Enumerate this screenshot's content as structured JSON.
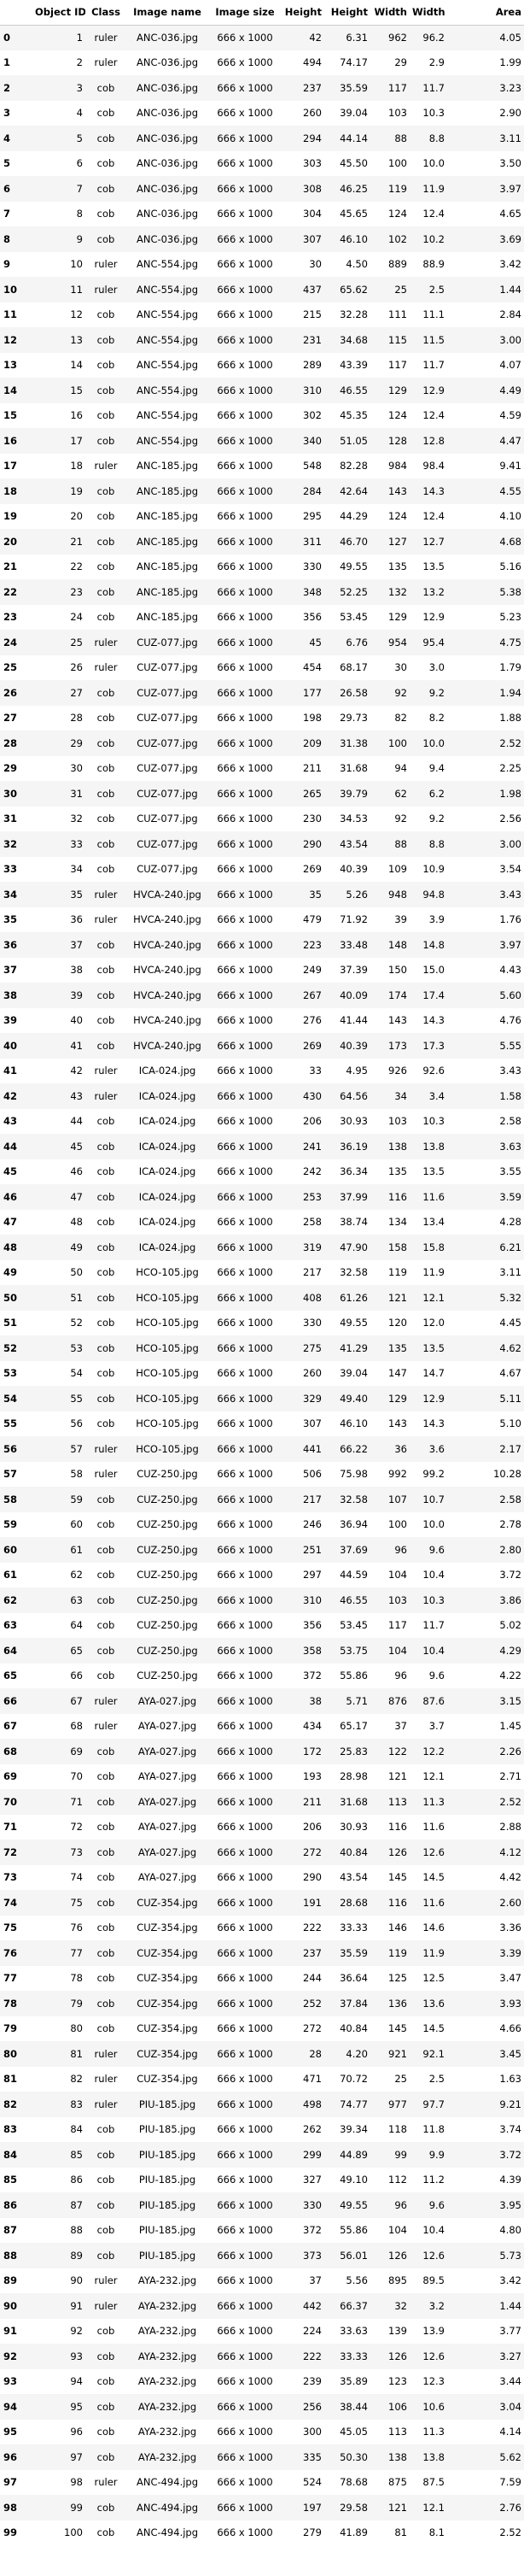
{
  "columns": [
    "",
    "Object ID",
    "Class",
    "Image name",
    "Image size",
    "Height",
    "Height",
    "Width",
    "Width",
    "Area"
  ],
  "rows": [
    [
      "0",
      "1",
      "ruler",
      "ANC-036.jpg",
      "666 x 1000",
      "42",
      "6.31",
      "962",
      "96.2",
      "4.05"
    ],
    [
      "1",
      "2",
      "ruler",
      "ANC-036.jpg",
      "666 x 1000",
      "494",
      "74.17",
      "29",
      "2.9",
      "1.99"
    ],
    [
      "2",
      "3",
      "cob",
      "ANC-036.jpg",
      "666 x 1000",
      "237",
      "35.59",
      "117",
      "11.7",
      "3.23"
    ],
    [
      "3",
      "4",
      "cob",
      "ANC-036.jpg",
      "666 x 1000",
      "260",
      "39.04",
      "103",
      "10.3",
      "2.90"
    ],
    [
      "4",
      "5",
      "cob",
      "ANC-036.jpg",
      "666 x 1000",
      "294",
      "44.14",
      "88",
      "8.8",
      "3.11"
    ],
    [
      "5",
      "6",
      "cob",
      "ANC-036.jpg",
      "666 x 1000",
      "303",
      "45.50",
      "100",
      "10.0",
      "3.50"
    ],
    [
      "6",
      "7",
      "cob",
      "ANC-036.jpg",
      "666 x 1000",
      "308",
      "46.25",
      "119",
      "11.9",
      "3.97"
    ],
    [
      "7",
      "8",
      "cob",
      "ANC-036.jpg",
      "666 x 1000",
      "304",
      "45.65",
      "124",
      "12.4",
      "4.65"
    ],
    [
      "8",
      "9",
      "cob",
      "ANC-036.jpg",
      "666 x 1000",
      "307",
      "46.10",
      "102",
      "10.2",
      "3.69"
    ],
    [
      "9",
      "10",
      "ruler",
      "ANC-554.jpg",
      "666 x 1000",
      "30",
      "4.50",
      "889",
      "88.9",
      "3.42"
    ],
    [
      "10",
      "11",
      "ruler",
      "ANC-554.jpg",
      "666 x 1000",
      "437",
      "65.62",
      "25",
      "2.5",
      "1.44"
    ],
    [
      "11",
      "12",
      "cob",
      "ANC-554.jpg",
      "666 x 1000",
      "215",
      "32.28",
      "111",
      "11.1",
      "2.84"
    ],
    [
      "12",
      "13",
      "cob",
      "ANC-554.jpg",
      "666 x 1000",
      "231",
      "34.68",
      "115",
      "11.5",
      "3.00"
    ],
    [
      "13",
      "14",
      "cob",
      "ANC-554.jpg",
      "666 x 1000",
      "289",
      "43.39",
      "117",
      "11.7",
      "4.07"
    ],
    [
      "14",
      "15",
      "cob",
      "ANC-554.jpg",
      "666 x 1000",
      "310",
      "46.55",
      "129",
      "12.9",
      "4.49"
    ],
    [
      "15",
      "16",
      "cob",
      "ANC-554.jpg",
      "666 x 1000",
      "302",
      "45.35",
      "124",
      "12.4",
      "4.59"
    ],
    [
      "16",
      "17",
      "cob",
      "ANC-554.jpg",
      "666 x 1000",
      "340",
      "51.05",
      "128",
      "12.8",
      "4.47"
    ],
    [
      "17",
      "18",
      "ruler",
      "ANC-185.jpg",
      "666 x 1000",
      "548",
      "82.28",
      "984",
      "98.4",
      "9.41"
    ],
    [
      "18",
      "19",
      "cob",
      "ANC-185.jpg",
      "666 x 1000",
      "284",
      "42.64",
      "143",
      "14.3",
      "4.55"
    ],
    [
      "19",
      "20",
      "cob",
      "ANC-185.jpg",
      "666 x 1000",
      "295",
      "44.29",
      "124",
      "12.4",
      "4.10"
    ],
    [
      "20",
      "21",
      "cob",
      "ANC-185.jpg",
      "666 x 1000",
      "311",
      "46.70",
      "127",
      "12.7",
      "4.68"
    ],
    [
      "21",
      "22",
      "cob",
      "ANC-185.jpg",
      "666 x 1000",
      "330",
      "49.55",
      "135",
      "13.5",
      "5.16"
    ],
    [
      "22",
      "23",
      "cob",
      "ANC-185.jpg",
      "666 x 1000",
      "348",
      "52.25",
      "132",
      "13.2",
      "5.38"
    ],
    [
      "23",
      "24",
      "cob",
      "ANC-185.jpg",
      "666 x 1000",
      "356",
      "53.45",
      "129",
      "12.9",
      "5.23"
    ],
    [
      "24",
      "25",
      "ruler",
      "CUZ-077.jpg",
      "666 x 1000",
      "45",
      "6.76",
      "954",
      "95.4",
      "4.75"
    ],
    [
      "25",
      "26",
      "ruler",
      "CUZ-077.jpg",
      "666 x 1000",
      "454",
      "68.17",
      "30",
      "3.0",
      "1.79"
    ],
    [
      "26",
      "27",
      "cob",
      "CUZ-077.jpg",
      "666 x 1000",
      "177",
      "26.58",
      "92",
      "9.2",
      "1.94"
    ],
    [
      "27",
      "28",
      "cob",
      "CUZ-077.jpg",
      "666 x 1000",
      "198",
      "29.73",
      "82",
      "8.2",
      "1.88"
    ],
    [
      "28",
      "29",
      "cob",
      "CUZ-077.jpg",
      "666 x 1000",
      "209",
      "31.38",
      "100",
      "10.0",
      "2.52"
    ],
    [
      "29",
      "30",
      "cob",
      "CUZ-077.jpg",
      "666 x 1000",
      "211",
      "31.68",
      "94",
      "9.4",
      "2.25"
    ],
    [
      "30",
      "31",
      "cob",
      "CUZ-077.jpg",
      "666 x 1000",
      "265",
      "39.79",
      "62",
      "6.2",
      "1.98"
    ],
    [
      "31",
      "32",
      "cob",
      "CUZ-077.jpg",
      "666 x 1000",
      "230",
      "34.53",
      "92",
      "9.2",
      "2.56"
    ],
    [
      "32",
      "33",
      "cob",
      "CUZ-077.jpg",
      "666 x 1000",
      "290",
      "43.54",
      "88",
      "8.8",
      "3.00"
    ],
    [
      "33",
      "34",
      "cob",
      "CUZ-077.jpg",
      "666 x 1000",
      "269",
      "40.39",
      "109",
      "10.9",
      "3.54"
    ],
    [
      "34",
      "35",
      "ruler",
      "HVCA-240.jpg",
      "666 x 1000",
      "35",
      "5.26",
      "948",
      "94.8",
      "3.43"
    ],
    [
      "35",
      "36",
      "ruler",
      "HVCA-240.jpg",
      "666 x 1000",
      "479",
      "71.92",
      "39",
      "3.9",
      "1.76"
    ],
    [
      "36",
      "37",
      "cob",
      "HVCA-240.jpg",
      "666 x 1000",
      "223",
      "33.48",
      "148",
      "14.8",
      "3.97"
    ],
    [
      "37",
      "38",
      "cob",
      "HVCA-240.jpg",
      "666 x 1000",
      "249",
      "37.39",
      "150",
      "15.0",
      "4.43"
    ],
    [
      "38",
      "39",
      "cob",
      "HVCA-240.jpg",
      "666 x 1000",
      "267",
      "40.09",
      "174",
      "17.4",
      "5.60"
    ],
    [
      "39",
      "40",
      "cob",
      "HVCA-240.jpg",
      "666 x 1000",
      "276",
      "41.44",
      "143",
      "14.3",
      "4.76"
    ],
    [
      "40",
      "41",
      "cob",
      "HVCA-240.jpg",
      "666 x 1000",
      "269",
      "40.39",
      "173",
      "17.3",
      "5.55"
    ],
    [
      "41",
      "42",
      "ruler",
      "ICA-024.jpg",
      "666 x 1000",
      "33",
      "4.95",
      "926",
      "92.6",
      "3.43"
    ],
    [
      "42",
      "43",
      "ruler",
      "ICA-024.jpg",
      "666 x 1000",
      "430",
      "64.56",
      "34",
      "3.4",
      "1.58"
    ],
    [
      "43",
      "44",
      "cob",
      "ICA-024.jpg",
      "666 x 1000",
      "206",
      "30.93",
      "103",
      "10.3",
      "2.58"
    ],
    [
      "44",
      "45",
      "cob",
      "ICA-024.jpg",
      "666 x 1000",
      "241",
      "36.19",
      "138",
      "13.8",
      "3.63"
    ],
    [
      "45",
      "46",
      "cob",
      "ICA-024.jpg",
      "666 x 1000",
      "242",
      "36.34",
      "135",
      "13.5",
      "3.55"
    ],
    [
      "46",
      "47",
      "cob",
      "ICA-024.jpg",
      "666 x 1000",
      "253",
      "37.99",
      "116",
      "11.6",
      "3.59"
    ],
    [
      "47",
      "48",
      "cob",
      "ICA-024.jpg",
      "666 x 1000",
      "258",
      "38.74",
      "134",
      "13.4",
      "4.28"
    ],
    [
      "48",
      "49",
      "cob",
      "ICA-024.jpg",
      "666 x 1000",
      "319",
      "47.90",
      "158",
      "15.8",
      "6.21"
    ],
    [
      "49",
      "50",
      "cob",
      "HCO-105.jpg",
      "666 x 1000",
      "217",
      "32.58",
      "119",
      "11.9",
      "3.11"
    ],
    [
      "50",
      "51",
      "cob",
      "HCO-105.jpg",
      "666 x 1000",
      "408",
      "61.26",
      "121",
      "12.1",
      "5.32"
    ],
    [
      "51",
      "52",
      "cob",
      "HCO-105.jpg",
      "666 x 1000",
      "330",
      "49.55",
      "120",
      "12.0",
      "4.45"
    ],
    [
      "52",
      "53",
      "cob",
      "HCO-105.jpg",
      "666 x 1000",
      "275",
      "41.29",
      "135",
      "13.5",
      "4.62"
    ],
    [
      "53",
      "54",
      "cob",
      "HCO-105.jpg",
      "666 x 1000",
      "260",
      "39.04",
      "147",
      "14.7",
      "4.67"
    ],
    [
      "54",
      "55",
      "cob",
      "HCO-105.jpg",
      "666 x 1000",
      "329",
      "49.40",
      "129",
      "12.9",
      "5.11"
    ],
    [
      "55",
      "56",
      "cob",
      "HCO-105.jpg",
      "666 x 1000",
      "307",
      "46.10",
      "143",
      "14.3",
      "5.10"
    ],
    [
      "56",
      "57",
      "ruler",
      "HCO-105.jpg",
      "666 x 1000",
      "441",
      "66.22",
      "36",
      "3.6",
      "2.17"
    ],
    [
      "57",
      "58",
      "ruler",
      "CUZ-250.jpg",
      "666 x 1000",
      "506",
      "75.98",
      "992",
      "99.2",
      "10.28"
    ],
    [
      "58",
      "59",
      "cob",
      "CUZ-250.jpg",
      "666 x 1000",
      "217",
      "32.58",
      "107",
      "10.7",
      "2.58"
    ],
    [
      "59",
      "60",
      "cob",
      "CUZ-250.jpg",
      "666 x 1000",
      "246",
      "36.94",
      "100",
      "10.0",
      "2.78"
    ],
    [
      "60",
      "61",
      "cob",
      "CUZ-250.jpg",
      "666 x 1000",
      "251",
      "37.69",
      "96",
      "9.6",
      "2.80"
    ],
    [
      "61",
      "62",
      "cob",
      "CUZ-250.jpg",
      "666 x 1000",
      "297",
      "44.59",
      "104",
      "10.4",
      "3.72"
    ],
    [
      "62",
      "63",
      "cob",
      "CUZ-250.jpg",
      "666 x 1000",
      "310",
      "46.55",
      "103",
      "10.3",
      "3.86"
    ],
    [
      "63",
      "64",
      "cob",
      "CUZ-250.jpg",
      "666 x 1000",
      "356",
      "53.45",
      "117",
      "11.7",
      "5.02"
    ],
    [
      "64",
      "65",
      "cob",
      "CUZ-250.jpg",
      "666 x 1000",
      "358",
      "53.75",
      "104",
      "10.4",
      "4.29"
    ],
    [
      "65",
      "66",
      "cob",
      "CUZ-250.jpg",
      "666 x 1000",
      "372",
      "55.86",
      "96",
      "9.6",
      "4.22"
    ],
    [
      "66",
      "67",
      "ruler",
      "AYA-027.jpg",
      "666 x 1000",
      "38",
      "5.71",
      "876",
      "87.6",
      "3.15"
    ],
    [
      "67",
      "68",
      "ruler",
      "AYA-027.jpg",
      "666 x 1000",
      "434",
      "65.17",
      "37",
      "3.7",
      "1.45"
    ],
    [
      "68",
      "69",
      "cob",
      "AYA-027.jpg",
      "666 x 1000",
      "172",
      "25.83",
      "122",
      "12.2",
      "2.26"
    ],
    [
      "69",
      "70",
      "cob",
      "AYA-027.jpg",
      "666 x 1000",
      "193",
      "28.98",
      "121",
      "12.1",
      "2.71"
    ],
    [
      "70",
      "71",
      "cob",
      "AYA-027.jpg",
      "666 x 1000",
      "211",
      "31.68",
      "113",
      "11.3",
      "2.52"
    ],
    [
      "71",
      "72",
      "cob",
      "AYA-027.jpg",
      "666 x 1000",
      "206",
      "30.93",
      "116",
      "11.6",
      "2.88"
    ],
    [
      "72",
      "73",
      "cob",
      "AYA-027.jpg",
      "666 x 1000",
      "272",
      "40.84",
      "126",
      "12.6",
      "4.12"
    ],
    [
      "73",
      "74",
      "cob",
      "AYA-027.jpg",
      "666 x 1000",
      "290",
      "43.54",
      "145",
      "14.5",
      "4.42"
    ],
    [
      "74",
      "75",
      "cob",
      "CUZ-354.jpg",
      "666 x 1000",
      "191",
      "28.68",
      "116",
      "11.6",
      "2.60"
    ],
    [
      "75",
      "76",
      "cob",
      "CUZ-354.jpg",
      "666 x 1000",
      "222",
      "33.33",
      "146",
      "14.6",
      "3.36"
    ],
    [
      "76",
      "77",
      "cob",
      "CUZ-354.jpg",
      "666 x 1000",
      "237",
      "35.59",
      "119",
      "11.9",
      "3.39"
    ],
    [
      "77",
      "78",
      "cob",
      "CUZ-354.jpg",
      "666 x 1000",
      "244",
      "36.64",
      "125",
      "12.5",
      "3.47"
    ],
    [
      "78",
      "79",
      "cob",
      "CUZ-354.jpg",
      "666 x 1000",
      "252",
      "37.84",
      "136",
      "13.6",
      "3.93"
    ],
    [
      "79",
      "80",
      "cob",
      "CUZ-354.jpg",
      "666 x 1000",
      "272",
      "40.84",
      "145",
      "14.5",
      "4.66"
    ],
    [
      "80",
      "81",
      "ruler",
      "CUZ-354.jpg",
      "666 x 1000",
      "28",
      "4.20",
      "921",
      "92.1",
      "3.45"
    ],
    [
      "81",
      "82",
      "ruler",
      "CUZ-354.jpg",
      "666 x 1000",
      "471",
      "70.72",
      "25",
      "2.5",
      "1.63"
    ],
    [
      "82",
      "83",
      "ruler",
      "PIU-185.jpg",
      "666 x 1000",
      "498",
      "74.77",
      "977",
      "97.7",
      "9.21"
    ],
    [
      "83",
      "84",
      "cob",
      "PIU-185.jpg",
      "666 x 1000",
      "262",
      "39.34",
      "118",
      "11.8",
      "3.74"
    ],
    [
      "84",
      "85",
      "cob",
      "PIU-185.jpg",
      "666 x 1000",
      "299",
      "44.89",
      "99",
      "9.9",
      "3.72"
    ],
    [
      "85",
      "86",
      "cob",
      "PIU-185.jpg",
      "666 x 1000",
      "327",
      "49.10",
      "112",
      "11.2",
      "4.39"
    ],
    [
      "86",
      "87",
      "cob",
      "PIU-185.jpg",
      "666 x 1000",
      "330",
      "49.55",
      "96",
      "9.6",
      "3.95"
    ],
    [
      "87",
      "88",
      "cob",
      "PIU-185.jpg",
      "666 x 1000",
      "372",
      "55.86",
      "104",
      "10.4",
      "4.80"
    ],
    [
      "88",
      "89",
      "cob",
      "PIU-185.jpg",
      "666 x 1000",
      "373",
      "56.01",
      "126",
      "12.6",
      "5.73"
    ],
    [
      "89",
      "90",
      "ruler",
      "AYA-232.jpg",
      "666 x 1000",
      "37",
      "5.56",
      "895",
      "89.5",
      "3.42"
    ],
    [
      "90",
      "91",
      "ruler",
      "AYA-232.jpg",
      "666 x 1000",
      "442",
      "66.37",
      "32",
      "3.2",
      "1.44"
    ],
    [
      "91",
      "92",
      "cob",
      "AYA-232.jpg",
      "666 x 1000",
      "224",
      "33.63",
      "139",
      "13.9",
      "3.77"
    ],
    [
      "92",
      "93",
      "cob",
      "AYA-232.jpg",
      "666 x 1000",
      "222",
      "33.33",
      "126",
      "12.6",
      "3.27"
    ],
    [
      "93",
      "94",
      "cob",
      "AYA-232.jpg",
      "666 x 1000",
      "239",
      "35.89",
      "123",
      "12.3",
      "3.44"
    ],
    [
      "94",
      "95",
      "cob",
      "AYA-232.jpg",
      "666 x 1000",
      "256",
      "38.44",
      "106",
      "10.6",
      "3.04"
    ],
    [
      "95",
      "96",
      "cob",
      "AYA-232.jpg",
      "666 x 1000",
      "300",
      "45.05",
      "113",
      "11.3",
      "4.14"
    ],
    [
      "96",
      "97",
      "cob",
      "AYA-232.jpg",
      "666 x 1000",
      "335",
      "50.30",
      "138",
      "13.8",
      "5.62"
    ],
    [
      "97",
      "98",
      "ruler",
      "ANC-494.jpg",
      "666 x 1000",
      "524",
      "78.68",
      "875",
      "87.5",
      "7.59"
    ],
    [
      "98",
      "99",
      "cob",
      "ANC-494.jpg",
      "666 x 1000",
      "197",
      "29.58",
      "121",
      "12.1",
      "2.76"
    ],
    [
      "99",
      "100",
      "cob",
      "ANC-494.jpg",
      "666 x 1000",
      "279",
      "41.89",
      "81",
      "8.1",
      "2.52"
    ]
  ]
}
